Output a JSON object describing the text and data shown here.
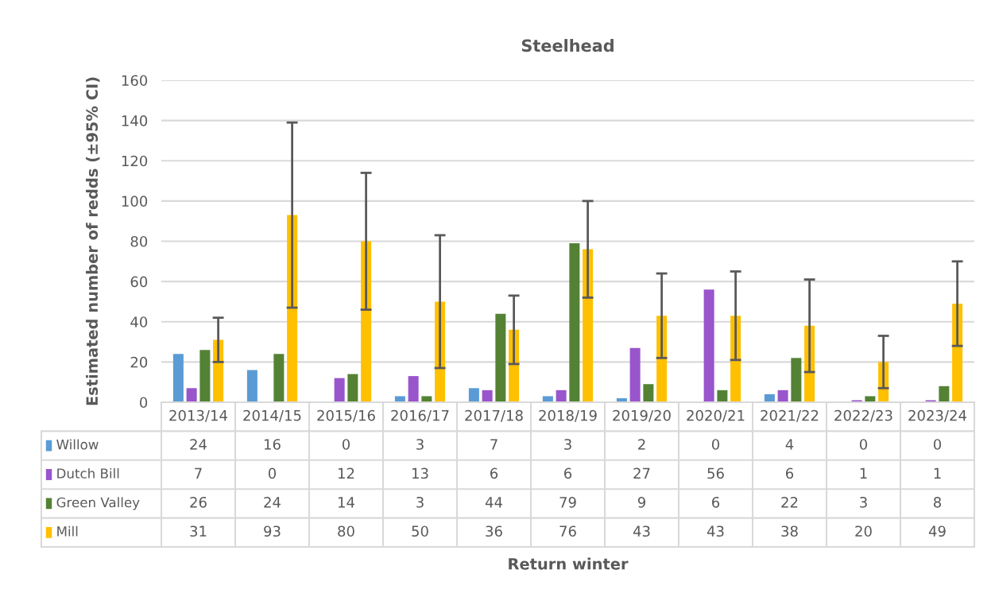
{
  "chart_data": {
    "type": "bar",
    "title": "Steelhead",
    "annotations": [
      "Return winter"
    ],
    "ylabel": "Estimated number of redds (±95% CI)",
    "categories": [
      "2013/14",
      "2014/15",
      "2015/16",
      "2016/17",
      "2017/18",
      "2018/19",
      "2019/20",
      "2020/21",
      "2021/22",
      "2022/23",
      "2023/24"
    ],
    "series": [
      {
        "name": "Willow",
        "color": "#5b9bd5",
        "values": [
          24,
          16,
          0,
          3,
          7,
          3,
          2,
          0,
          4,
          0,
          0
        ]
      },
      {
        "name": "Dutch Bill",
        "color": "#9955cc",
        "values": [
          7,
          0,
          12,
          13,
          6,
          6,
          27,
          56,
          6,
          1,
          1
        ]
      },
      {
        "name": "Green Valley",
        "color": "#548235",
        "values": [
          26,
          24,
          14,
          3,
          44,
          79,
          9,
          6,
          22,
          3,
          8
        ]
      },
      {
        "name": "Mill",
        "color": "#ffc000",
        "values": [
          31,
          93,
          80,
          50,
          36,
          76,
          43,
          43,
          38,
          20,
          49
        ],
        "errors": [
          [
            20,
            42
          ],
          [
            47,
            139
          ],
          [
            46,
            114
          ],
          [
            17,
            83
          ],
          [
            19,
            53
          ],
          [
            52,
            100
          ],
          [
            22,
            64
          ],
          [
            21,
            65
          ],
          [
            15,
            61
          ],
          [
            7,
            33
          ],
          [
            28,
            70
          ]
        ]
      }
    ],
    "ylim": [
      0,
      160
    ],
    "yticks": [
      0,
      20,
      40,
      60,
      80,
      100,
      120,
      140,
      160
    ],
    "grid": "y",
    "data_labels": true,
    "legend": "bottom"
  }
}
